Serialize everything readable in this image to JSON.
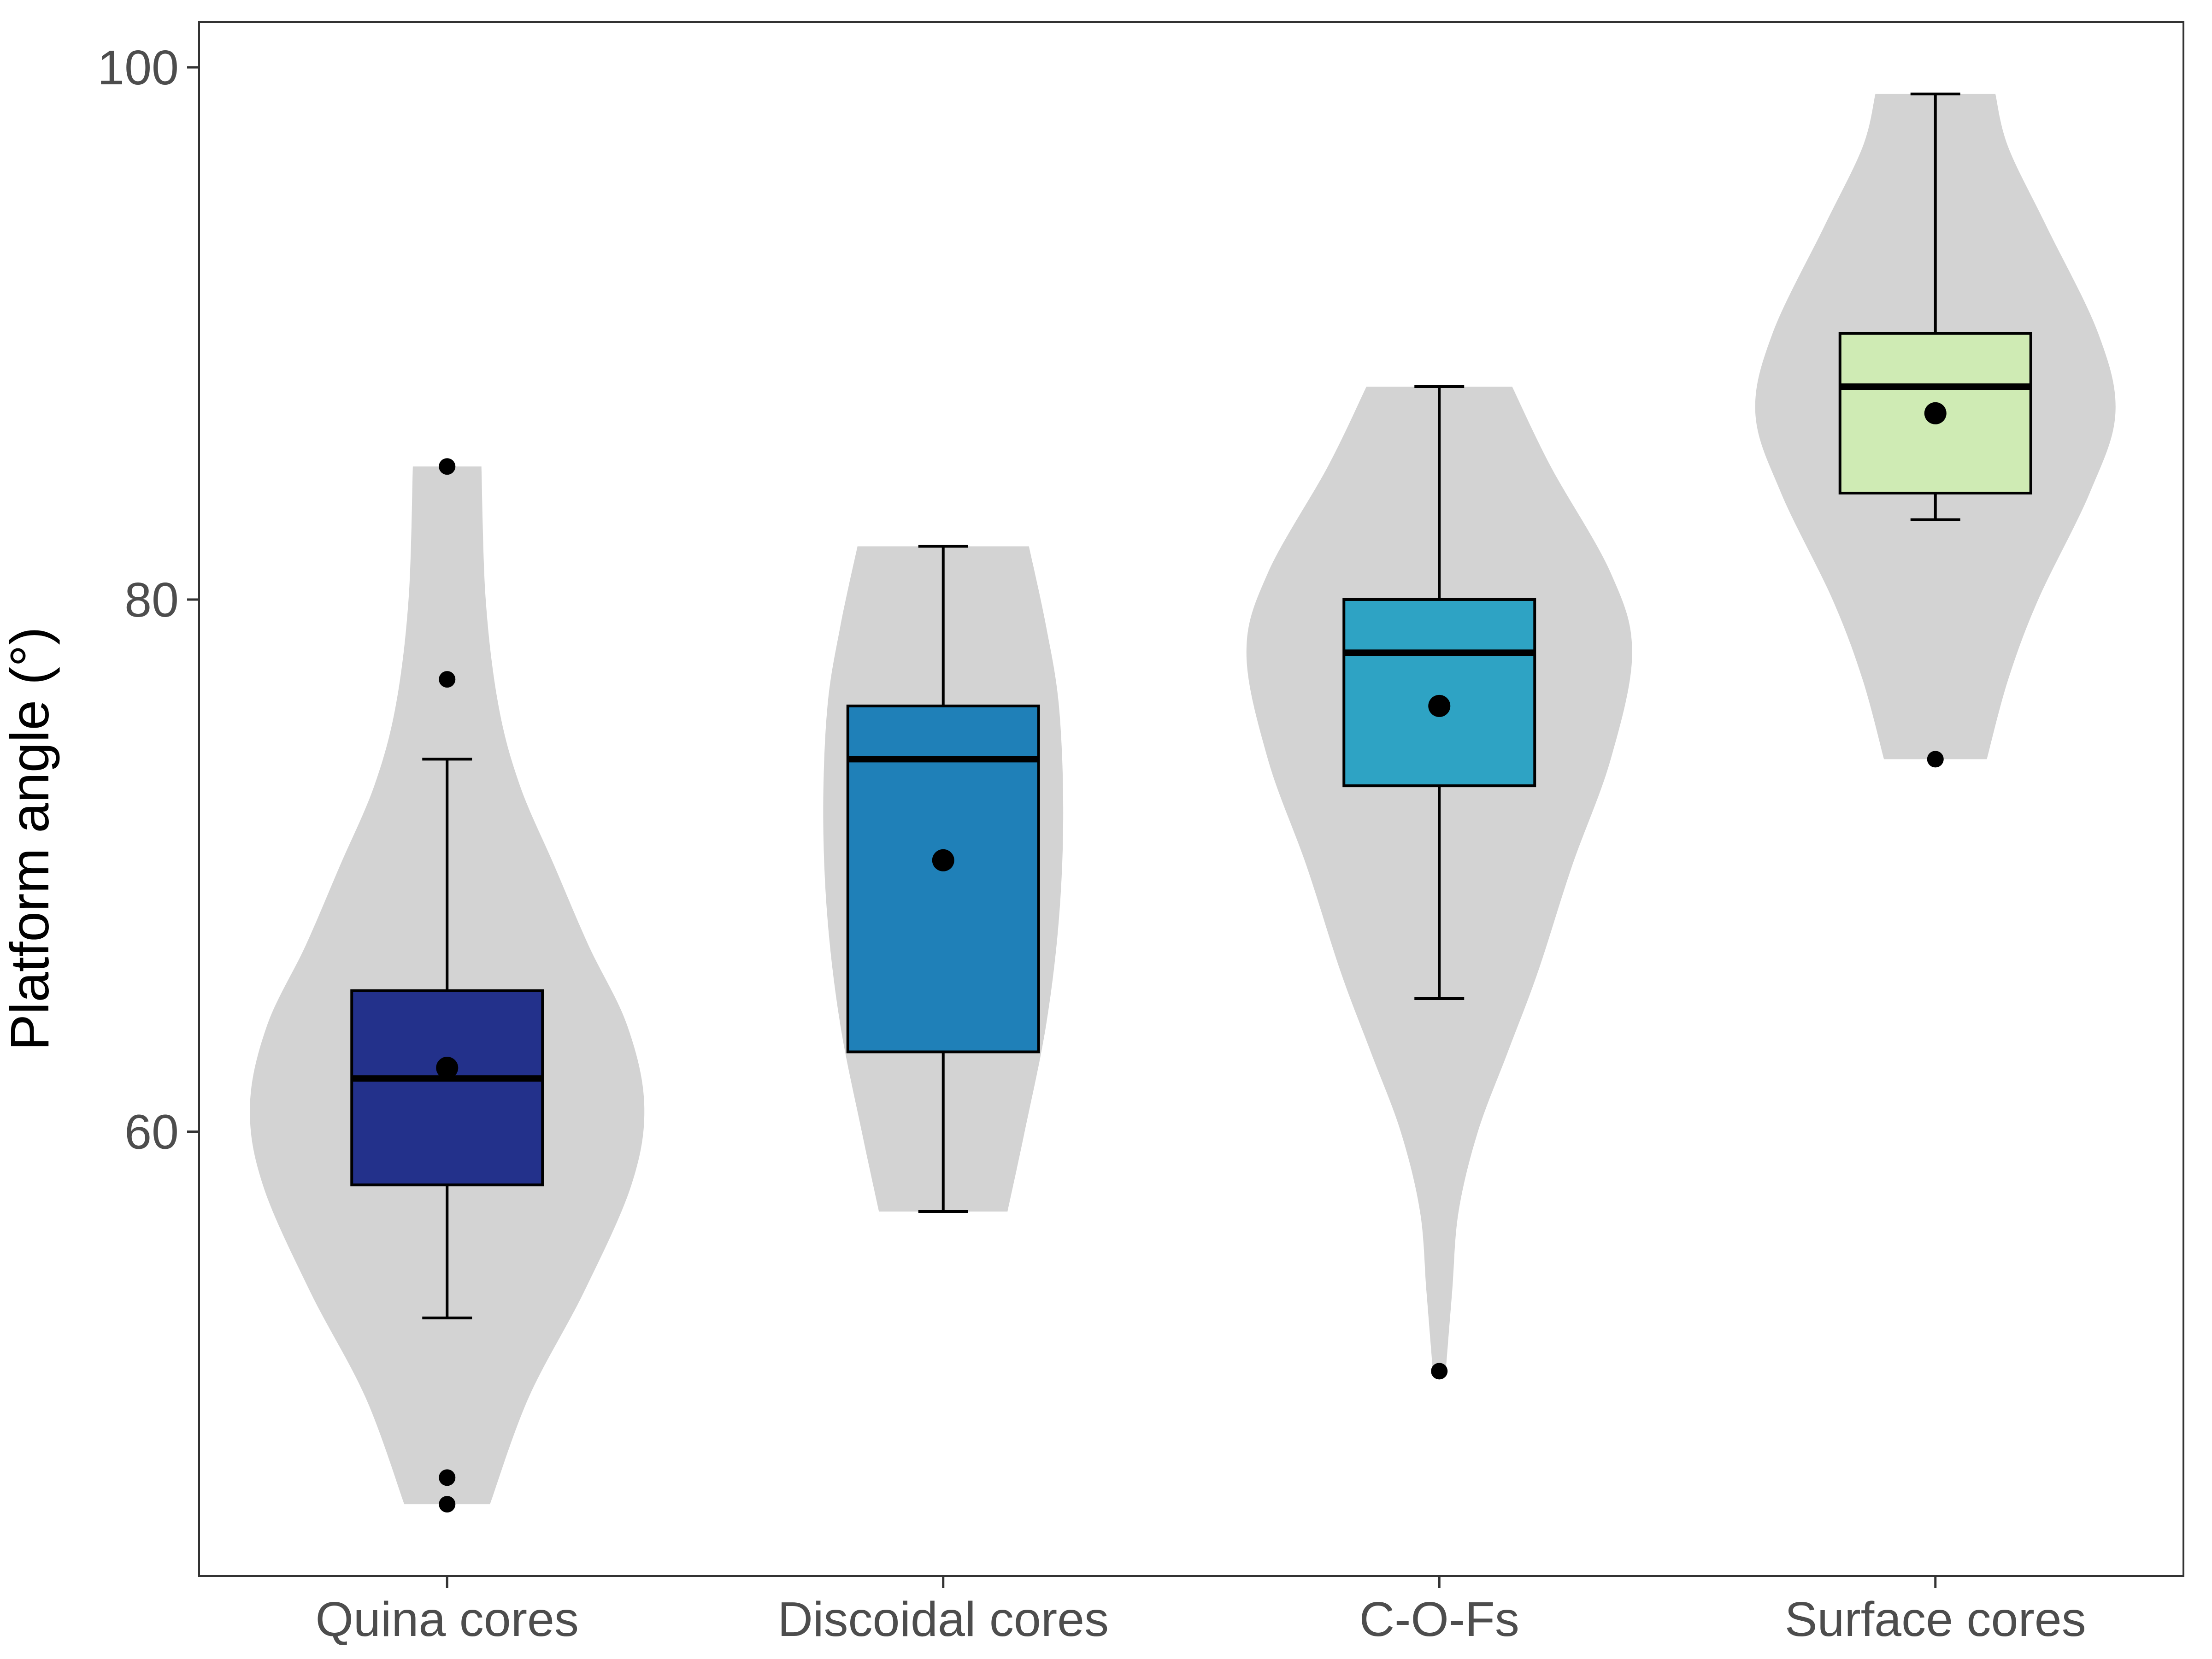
{
  "chart_data": {
    "type": "violin",
    "title": "",
    "xlabel": "",
    "ylabel": "Platform angle (°)",
    "ylim": [
      43.3,
      101.7
    ],
    "yticks": [
      60,
      80,
      100
    ],
    "grid": false,
    "legend": "none",
    "categories": [
      "Quina cores",
      "Discoidal cores",
      "C-O-Fs",
      "Surface cores"
    ],
    "series": [
      {
        "category": "Quina cores",
        "color": "#23318b",
        "median": 62,
        "q1": 58,
        "q3": 65.3,
        "whisker_low": 53,
        "whisker_high": 74,
        "mean": 62.4,
        "outliers": [
          85,
          77,
          47,
          46
        ],
        "violin": [
          [
            46,
            1.0
          ],
          [
            50,
            1.9
          ],
          [
            54,
            3.2
          ],
          [
            58,
            4.3
          ],
          [
            61,
            4.6
          ],
          [
            64,
            4.2
          ],
          [
            67,
            3.3
          ],
          [
            70,
            2.5
          ],
          [
            73,
            1.7
          ],
          [
            76,
            1.2
          ],
          [
            80,
            0.9
          ],
          [
            85,
            0.8
          ]
        ]
      },
      {
        "category": "Discoidal cores",
        "color": "#1f80b8",
        "median": 74,
        "q1": 63,
        "q3": 76,
        "whisker_low": 57,
        "whisker_high": 82,
        "mean": 70.2,
        "outliers": [],
        "violin": [
          [
            57,
            1.5
          ],
          [
            60,
            1.9
          ],
          [
            64,
            2.4
          ],
          [
            68,
            2.7
          ],
          [
            72,
            2.8
          ],
          [
            76,
            2.7
          ],
          [
            79,
            2.4
          ],
          [
            82,
            2.0
          ]
        ]
      },
      {
        "category": "C-O-Fs",
        "color": "#2ea3c4",
        "median": 78,
        "q1": 73,
        "q3": 80,
        "whisker_low": 65,
        "whisker_high": 88,
        "mean": 76,
        "outliers": [
          51
        ],
        "violin": [
          [
            51,
            0.15
          ],
          [
            54,
            0.3
          ],
          [
            57,
            0.45
          ],
          [
            60,
            0.9
          ],
          [
            63,
            1.6
          ],
          [
            66,
            2.3
          ],
          [
            70,
            3.1
          ],
          [
            74,
            4.0
          ],
          [
            78,
            4.5
          ],
          [
            81,
            4.0
          ],
          [
            85,
            2.6
          ],
          [
            88,
            1.7
          ]
        ]
      },
      {
        "category": "Surface cores",
        "color": "#cfebb4",
        "median": 88,
        "q1": 84,
        "q3": 90,
        "whisker_low": 83,
        "whisker_high": 99,
        "mean": 87,
        "outliers": [
          74
        ],
        "violin": [
          [
            74,
            1.2
          ],
          [
            77,
            1.7
          ],
          [
            80,
            2.4
          ],
          [
            84,
            3.6
          ],
          [
            87,
            4.2
          ],
          [
            90,
            3.8
          ],
          [
            94,
            2.6
          ],
          [
            97,
            1.7
          ],
          [
            99,
            1.4
          ]
        ]
      }
    ]
  }
}
